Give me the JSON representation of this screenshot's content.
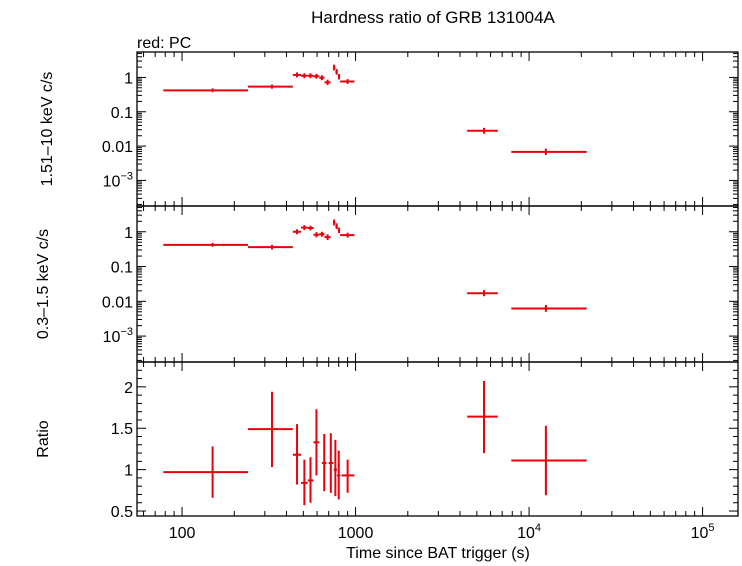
{
  "chart_data": {
    "type": "scatter",
    "title": "Hardness ratio of GRB 131004A",
    "annotation": "red: PC",
    "xlabel": "Time since BAT trigger (s)",
    "x_scale": "log",
    "xlim": [
      55,
      160000
    ],
    "x_ticks": [
      {
        "value": 100,
        "label": "100",
        "exp": ""
      },
      {
        "value": 1000,
        "label": "1000",
        "exp": ""
      },
      {
        "value": 10000,
        "label": "10",
        "exp": "4"
      },
      {
        "value": 100000,
        "label": "10",
        "exp": "5"
      }
    ],
    "panels": [
      {
        "id": "hard",
        "ylabel": "1.51–10 keV c/s",
        "y_scale": "log",
        "ylim": [
          0.00018,
          5.5
        ],
        "y_ticks": [
          {
            "value": 1,
            "label": "1",
            "exp": ""
          },
          {
            "value": 0.1,
            "label": "0.1",
            "exp": ""
          },
          {
            "value": 0.01,
            "label": "0.01",
            "exp": ""
          },
          {
            "value": 0.001,
            "label": "10",
            "exp": "−3"
          }
        ],
        "points": [
          {
            "x": 150,
            "x_lo": 78,
            "x_hi": 240,
            "y": 0.42,
            "y_lo": 0.37,
            "y_hi": 0.48
          },
          {
            "x": 330,
            "x_lo": 240,
            "x_hi": 435,
            "y": 0.54,
            "y_lo": 0.47,
            "y_hi": 0.62
          },
          {
            "x": 460,
            "x_lo": 435,
            "x_hi": 485,
            "y": 1.18,
            "y_lo": 1.0,
            "y_hi": 1.4
          },
          {
            "x": 507,
            "x_lo": 485,
            "x_hi": 530,
            "y": 1.12,
            "y_lo": 0.95,
            "y_hi": 1.32
          },
          {
            "x": 550,
            "x_lo": 530,
            "x_hi": 572,
            "y": 1.12,
            "y_lo": 0.95,
            "y_hi": 1.32
          },
          {
            "x": 595,
            "x_lo": 572,
            "x_hi": 618,
            "y": 1.08,
            "y_lo": 0.92,
            "y_hi": 1.27
          },
          {
            "x": 640,
            "x_lo": 618,
            "x_hi": 662,
            "y": 0.98,
            "y_lo": 0.83,
            "y_hi": 1.15
          },
          {
            "x": 690,
            "x_lo": 662,
            "x_hi": 718,
            "y": 0.72,
            "y_lo": 0.6,
            "y_hi": 0.86
          },
          {
            "x": 752,
            "x_lo": 740,
            "x_hi": 765,
            "y": 1.95,
            "y_lo": 1.6,
            "y_hi": 2.35
          },
          {
            "x": 778,
            "x_lo": 765,
            "x_hi": 790,
            "y": 1.45,
            "y_lo": 1.2,
            "y_hi": 1.75
          },
          {
            "x": 803,
            "x_lo": 790,
            "x_hi": 815,
            "y": 1.05,
            "y_lo": 0.87,
            "y_hi": 1.26
          },
          {
            "x": 900,
            "x_lo": 815,
            "x_hi": 985,
            "y": 0.76,
            "y_lo": 0.65,
            "y_hi": 0.89
          },
          {
            "x": 5500,
            "x_lo": 4400,
            "x_hi": 6600,
            "y": 0.028,
            "y_lo": 0.023,
            "y_hi": 0.034
          },
          {
            "x": 12500,
            "x_lo": 7900,
            "x_hi": 21500,
            "y": 0.0068,
            "y_lo": 0.0055,
            "y_hi": 0.0084
          }
        ]
      },
      {
        "id": "soft",
        "ylabel": "0.3–1.5 keV c/s",
        "y_scale": "log",
        "ylim": [
          0.00018,
          5.5
        ],
        "y_ticks": [
          {
            "value": 1,
            "label": "1",
            "exp": ""
          },
          {
            "value": 0.1,
            "label": "0.1",
            "exp": ""
          },
          {
            "value": 0.01,
            "label": "0.01",
            "exp": ""
          },
          {
            "value": 0.001,
            "label": "10",
            "exp": "−3"
          }
        ],
        "points": [
          {
            "x": 150,
            "x_lo": 78,
            "x_hi": 240,
            "y": 0.42,
            "y_lo": 0.37,
            "y_hi": 0.48
          },
          {
            "x": 330,
            "x_lo": 240,
            "x_hi": 435,
            "y": 0.36,
            "y_lo": 0.31,
            "y_hi": 0.42
          },
          {
            "x": 460,
            "x_lo": 435,
            "x_hi": 485,
            "y": 1.0,
            "y_lo": 0.85,
            "y_hi": 1.18
          },
          {
            "x": 507,
            "x_lo": 485,
            "x_hi": 530,
            "y": 1.32,
            "y_lo": 1.12,
            "y_hi": 1.55
          },
          {
            "x": 550,
            "x_lo": 530,
            "x_hi": 572,
            "y": 1.28,
            "y_lo": 1.09,
            "y_hi": 1.5
          },
          {
            "x": 595,
            "x_lo": 572,
            "x_hi": 618,
            "y": 0.82,
            "y_lo": 0.69,
            "y_hi": 0.97
          },
          {
            "x": 640,
            "x_lo": 618,
            "x_hi": 662,
            "y": 0.85,
            "y_lo": 0.72,
            "y_hi": 1.0
          },
          {
            "x": 690,
            "x_lo": 662,
            "x_hi": 718,
            "y": 0.7,
            "y_lo": 0.58,
            "y_hi": 0.84
          },
          {
            "x": 752,
            "x_lo": 740,
            "x_hi": 765,
            "y": 1.85,
            "y_lo": 1.52,
            "y_hi": 2.25
          },
          {
            "x": 778,
            "x_lo": 765,
            "x_hi": 790,
            "y": 1.45,
            "y_lo": 1.2,
            "y_hi": 1.75
          },
          {
            "x": 803,
            "x_lo": 790,
            "x_hi": 815,
            "y": 1.1,
            "y_lo": 0.92,
            "y_hi": 1.32
          },
          {
            "x": 900,
            "x_lo": 815,
            "x_hi": 985,
            "y": 0.8,
            "y_lo": 0.68,
            "y_hi": 0.94
          },
          {
            "x": 5500,
            "x_lo": 4400,
            "x_hi": 6600,
            "y": 0.017,
            "y_lo": 0.014,
            "y_hi": 0.021
          },
          {
            "x": 12500,
            "x_lo": 7900,
            "x_hi": 21500,
            "y": 0.0062,
            "y_lo": 0.005,
            "y_hi": 0.0078
          }
        ]
      },
      {
        "id": "ratio",
        "ylabel": "Ratio",
        "y_scale": "linear",
        "ylim": [
          0.44,
          2.3
        ],
        "y_ticks": [
          {
            "value": 0.5,
            "label": "0.5",
            "exp": ""
          },
          {
            "value": 1,
            "label": "1",
            "exp": ""
          },
          {
            "value": 1.5,
            "label": "1.5",
            "exp": ""
          },
          {
            "value": 2,
            "label": "2",
            "exp": ""
          }
        ],
        "points": [
          {
            "x": 150,
            "x_lo": 78,
            "x_hi": 240,
            "y": 0.97,
            "y_lo": 0.66,
            "y_hi": 1.28
          },
          {
            "x": 330,
            "x_lo": 240,
            "x_hi": 435,
            "y": 1.49,
            "y_lo": 1.03,
            "y_hi": 1.94
          },
          {
            "x": 460,
            "x_lo": 435,
            "x_hi": 485,
            "y": 1.18,
            "y_lo": 0.82,
            "y_hi": 1.55
          },
          {
            "x": 507,
            "x_lo": 485,
            "x_hi": 530,
            "y": 0.84,
            "y_lo": 0.57,
            "y_hi": 1.12
          },
          {
            "x": 550,
            "x_lo": 530,
            "x_hi": 572,
            "y": 0.87,
            "y_lo": 0.6,
            "y_hi": 1.15
          },
          {
            "x": 595,
            "x_lo": 572,
            "x_hi": 618,
            "y": 1.33,
            "y_lo": 0.93,
            "y_hi": 1.73
          },
          {
            "x": 660,
            "x_lo": 640,
            "x_hi": 680,
            "y": 1.08,
            "y_lo": 0.74,
            "y_hi": 1.43
          },
          {
            "x": 720,
            "x_lo": 700,
            "x_hi": 745,
            "y": 1.08,
            "y_lo": 0.72,
            "y_hi": 1.44
          },
          {
            "x": 765,
            "x_lo": 748,
            "x_hi": 782,
            "y": 1.0,
            "y_lo": 0.68,
            "y_hi": 1.36
          },
          {
            "x": 800,
            "x_lo": 782,
            "x_hi": 818,
            "y": 0.93,
            "y_lo": 0.64,
            "y_hi": 1.23
          },
          {
            "x": 900,
            "x_lo": 830,
            "x_hi": 985,
            "y": 0.93,
            "y_lo": 0.72,
            "y_hi": 1.12
          },
          {
            "x": 5500,
            "x_lo": 4400,
            "x_hi": 6600,
            "y": 1.64,
            "y_lo": 1.2,
            "y_hi": 2.07
          },
          {
            "x": 12500,
            "x_lo": 7900,
            "x_hi": 21500,
            "y": 1.11,
            "y_lo": 0.69,
            "y_hi": 1.53
          }
        ]
      }
    ],
    "series_color": "#e8000b",
    "grid": false
  }
}
